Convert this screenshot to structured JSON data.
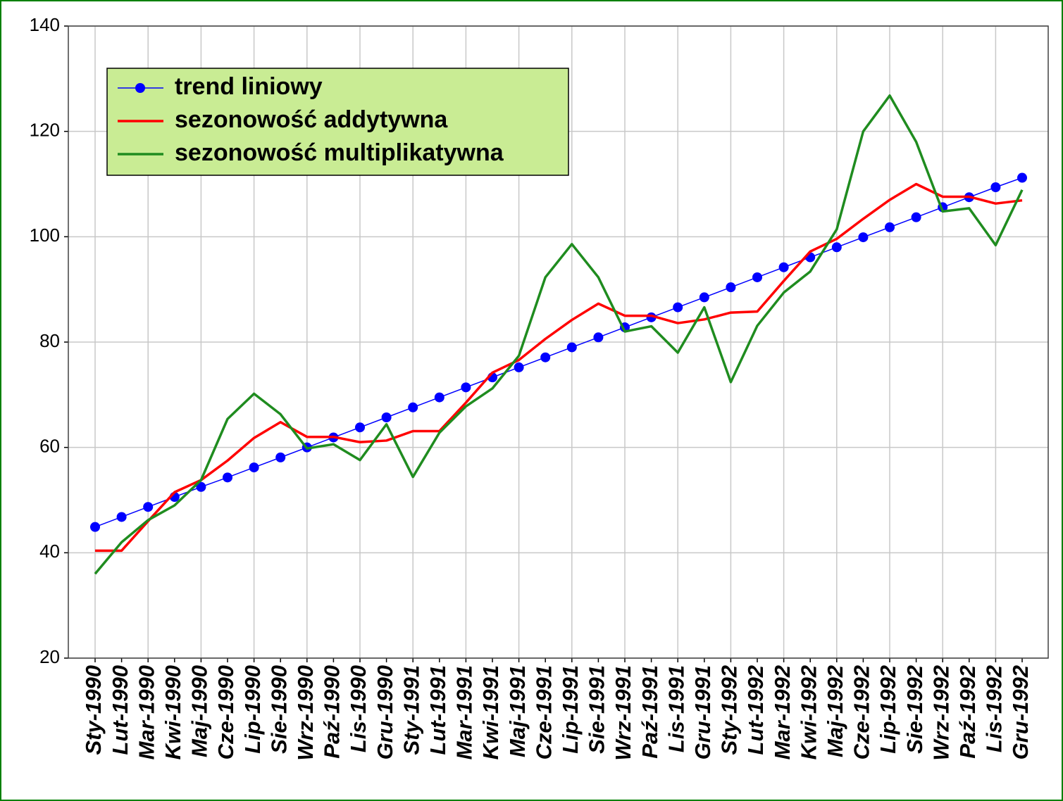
{
  "chart_data": {
    "type": "line",
    "categories": [
      "Sty-1990",
      "Lut-1990",
      "Mar-1990",
      "Kwi-1990",
      "Maj-1990",
      "Cze-1990",
      "Lip-1990",
      "Sie-1990",
      "Wrz-1990",
      "Paź-1990",
      "Lis-1990",
      "Gru-1990",
      "Sty-1991",
      "Lut-1991",
      "Mar-1991",
      "Kwi-1991",
      "Maj-1991",
      "Cze-1991",
      "Lip-1991",
      "Sie-1991",
      "Wrz-1991",
      "Paź-1991",
      "Lis-1991",
      "Gru-1991",
      "Sty-1992",
      "Lut-1992",
      "Mar-1992",
      "Kwi-1992",
      "Maj-1992",
      "Cze-1992",
      "Lip-1992",
      "Sie-1992",
      "Wrz-1992",
      "Paź-1992",
      "Lis-1992",
      "Gru-1992"
    ],
    "series": [
      {
        "name": "trend liniowy",
        "color": "#0000ff",
        "markers": true,
        "values": [
          44.9,
          46.8,
          48.7,
          50.6,
          52.5,
          54.3,
          56.2,
          58.1,
          60.0,
          61.9,
          63.8,
          65.7,
          67.6,
          69.5,
          71.4,
          73.3,
          75.2,
          77.1,
          79.0,
          80.9,
          82.8,
          84.7,
          86.6,
          88.5,
          90.4,
          92.3,
          94.2,
          96.1,
          98.0,
          99.9,
          101.8,
          103.7,
          105.6,
          107.5,
          109.4,
          111.2
        ]
      },
      {
        "name": "sezonowość addytywna",
        "color": "#ff0000",
        "markers": false,
        "values": [
          40.4,
          40.4,
          46.0,
          51.5,
          53.8,
          57.5,
          61.8,
          64.8,
          62.0,
          62.0,
          61.0,
          61.3,
          63.1,
          63.1,
          68.5,
          74.2,
          76.6,
          80.6,
          84.2,
          87.3,
          85.0,
          85.0,
          83.6,
          84.3,
          85.6,
          85.8,
          91.6,
          97.2,
          99.6,
          103.4,
          107.0,
          110.0,
          107.6,
          107.6,
          106.3,
          106.9
        ]
      },
      {
        "name": "sezonowość multiplikatywna",
        "color": "#1f8c1f",
        "markers": false,
        "values": [
          36.0,
          42.0,
          46.2,
          49.0,
          53.8,
          65.4,
          70.2,
          66.3,
          59.8,
          60.6,
          57.6,
          64.4,
          54.4,
          62.8,
          67.8,
          71.2,
          77.4,
          92.3,
          98.6,
          92.3,
          82.0,
          83.0,
          78.0,
          86.6,
          72.4,
          83.1,
          89.4,
          93.4,
          101.4,
          120.0,
          126.8,
          118.0,
          104.8,
          105.4,
          98.4,
          108.9
        ]
      }
    ],
    "ylim": [
      20,
      140
    ],
    "yticks": [
      20,
      40,
      60,
      80,
      100,
      120,
      140
    ],
    "grid": true,
    "legend": "upper left"
  }
}
